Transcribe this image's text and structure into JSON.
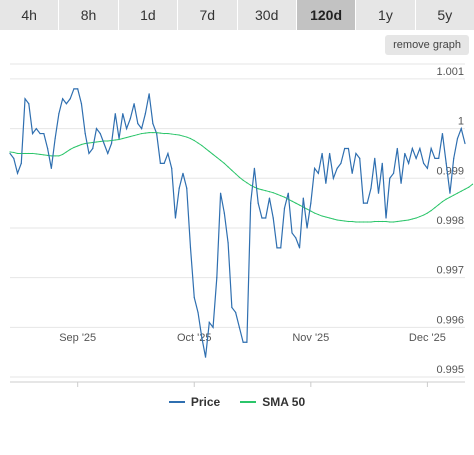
{
  "tabs": [
    {
      "label": "4h"
    },
    {
      "label": "8h"
    },
    {
      "label": "1d"
    },
    {
      "label": "7d"
    },
    {
      "label": "30d"
    },
    {
      "label": "120d",
      "active": true
    },
    {
      "label": "1y"
    },
    {
      "label": "5y"
    }
  ],
  "remove_graph_label": "remove graph",
  "colors": {
    "price": "#2f6fb0",
    "sma": "#2bc56a",
    "grid": "#e6e6e6",
    "axis": "#cccccc"
  },
  "chart_data": {
    "type": "line",
    "x_ticks": [
      "Sep '25",
      "Oct '25",
      "Nov '25",
      "Dec '25"
    ],
    "x_tick_index": [
      18,
      49,
      80,
      111
    ],
    "y_ticks": [
      "0.995",
      "0.996",
      "0.997",
      "0.998",
      "0.999",
      "1",
      "1.001"
    ],
    "y_tick_values": [
      0.995,
      0.996,
      0.997,
      0.998,
      0.999,
      1.0,
      1.001
    ],
    "ylim": [
      0.9949,
      1.0013
    ],
    "grid": true,
    "legend_position": "bottom",
    "series": [
      {
        "name": "Price",
        "values": [
          0.9995,
          0.9994,
          0.9991,
          0.9993,
          1.0006,
          1.0005,
          0.9999,
          1.0,
          0.9999,
          0.9999,
          0.9996,
          0.9992,
          0.9998,
          1.0003,
          1.0006,
          1.0005,
          1.0006,
          1.0008,
          1.0008,
          1.0005,
          0.9999,
          0.9995,
          0.9996,
          1.0,
          0.9999,
          0.9997,
          0.9995,
          0.9997,
          1.0003,
          0.9998,
          1.0003,
          1.0,
          1.0002,
          1.0005,
          1.0001,
          1.0,
          1.0003,
          1.0007,
          1.0001,
          0.9999,
          0.9993,
          0.9993,
          0.9995,
          0.9992,
          0.9982,
          0.9988,
          0.9991,
          0.9988,
          0.9976,
          0.9966,
          0.9963,
          0.9958,
          0.9954,
          0.9961,
          0.996,
          0.997,
          0.9987,
          0.9983,
          0.9977,
          0.9964,
          0.9963,
          0.996,
          0.9957,
          0.9957,
          0.9985,
          0.9992,
          0.9985,
          0.9982,
          0.9982,
          0.9986,
          0.9982,
          0.9976,
          0.9976,
          0.9984,
          0.9987,
          0.9979,
          0.9978,
          0.9976,
          0.9986,
          0.998,
          0.9985,
          0.9992,
          0.9991,
          0.9995,
          0.9989,
          0.9995,
          0.999,
          0.9992,
          0.9993,
          0.9996,
          0.9996,
          0.9991,
          0.9995,
          0.9994,
          0.9985,
          0.9985,
          0.9988,
          0.9994,
          0.9987,
          0.9993,
          0.9982,
          0.999,
          0.9991,
          0.9996,
          0.9989,
          0.9995,
          0.9993,
          0.9996,
          0.9994,
          0.9996,
          0.9993,
          0.9992,
          0.9996,
          0.9994,
          0.9994,
          0.9999,
          0.9993,
          0.9987,
          0.9994,
          0.9998,
          1.0,
          0.9997
        ],
        "color": "#2f6fb0"
      },
      {
        "name": "SMA 50",
        "values": [
          0.99953,
          0.99952,
          0.9995,
          0.9995,
          0.9995,
          0.9995,
          0.9995,
          0.99949,
          0.99948,
          0.99947,
          0.99946,
          0.99945,
          0.99945,
          0.99945,
          0.99948,
          0.99953,
          0.99958,
          0.99962,
          0.99965,
          0.99968,
          0.9997,
          0.99971,
          0.99972,
          0.99973,
          0.99974,
          0.99975,
          0.99975,
          0.99976,
          0.99977,
          0.99978,
          0.9998,
          0.99982,
          0.99984,
          0.99986,
          0.99988,
          0.9999,
          0.99991,
          0.99992,
          0.99992,
          0.99992,
          0.99991,
          0.9999,
          0.9999,
          0.99989,
          0.99988,
          0.99987,
          0.99985,
          0.99983,
          0.9998,
          0.99976,
          0.99971,
          0.99966,
          0.9996,
          0.99954,
          0.99948,
          0.99942,
          0.99936,
          0.9993,
          0.99923,
          0.99916,
          0.99909,
          0.99902,
          0.99896,
          0.99891,
          0.99886,
          0.99882,
          0.99879,
          0.99877,
          0.99875,
          0.99873,
          0.99871,
          0.99868,
          0.99865,
          0.99862,
          0.99858,
          0.99854,
          0.9985,
          0.99846,
          0.99842,
          0.99838,
          0.99834,
          0.9983,
          0.99827,
          0.99824,
          0.99822,
          0.9982,
          0.99818,
          0.99816,
          0.99815,
          0.99814,
          0.99813,
          0.99813,
          0.99812,
          0.99812,
          0.99812,
          0.99812,
          0.99812,
          0.99813,
          0.99813,
          0.99813,
          0.99813,
          0.99812,
          0.99812,
          0.99813,
          0.99814,
          0.99815,
          0.99816,
          0.99818,
          0.9982,
          0.99823,
          0.99826,
          0.9983,
          0.99835,
          0.99841,
          0.99847,
          0.99853,
          0.99858,
          0.99862,
          0.99866,
          0.9987,
          0.99874,
          0.99878,
          0.99882,
          0.99888
        ],
        "color": "#2bc56a"
      }
    ]
  }
}
